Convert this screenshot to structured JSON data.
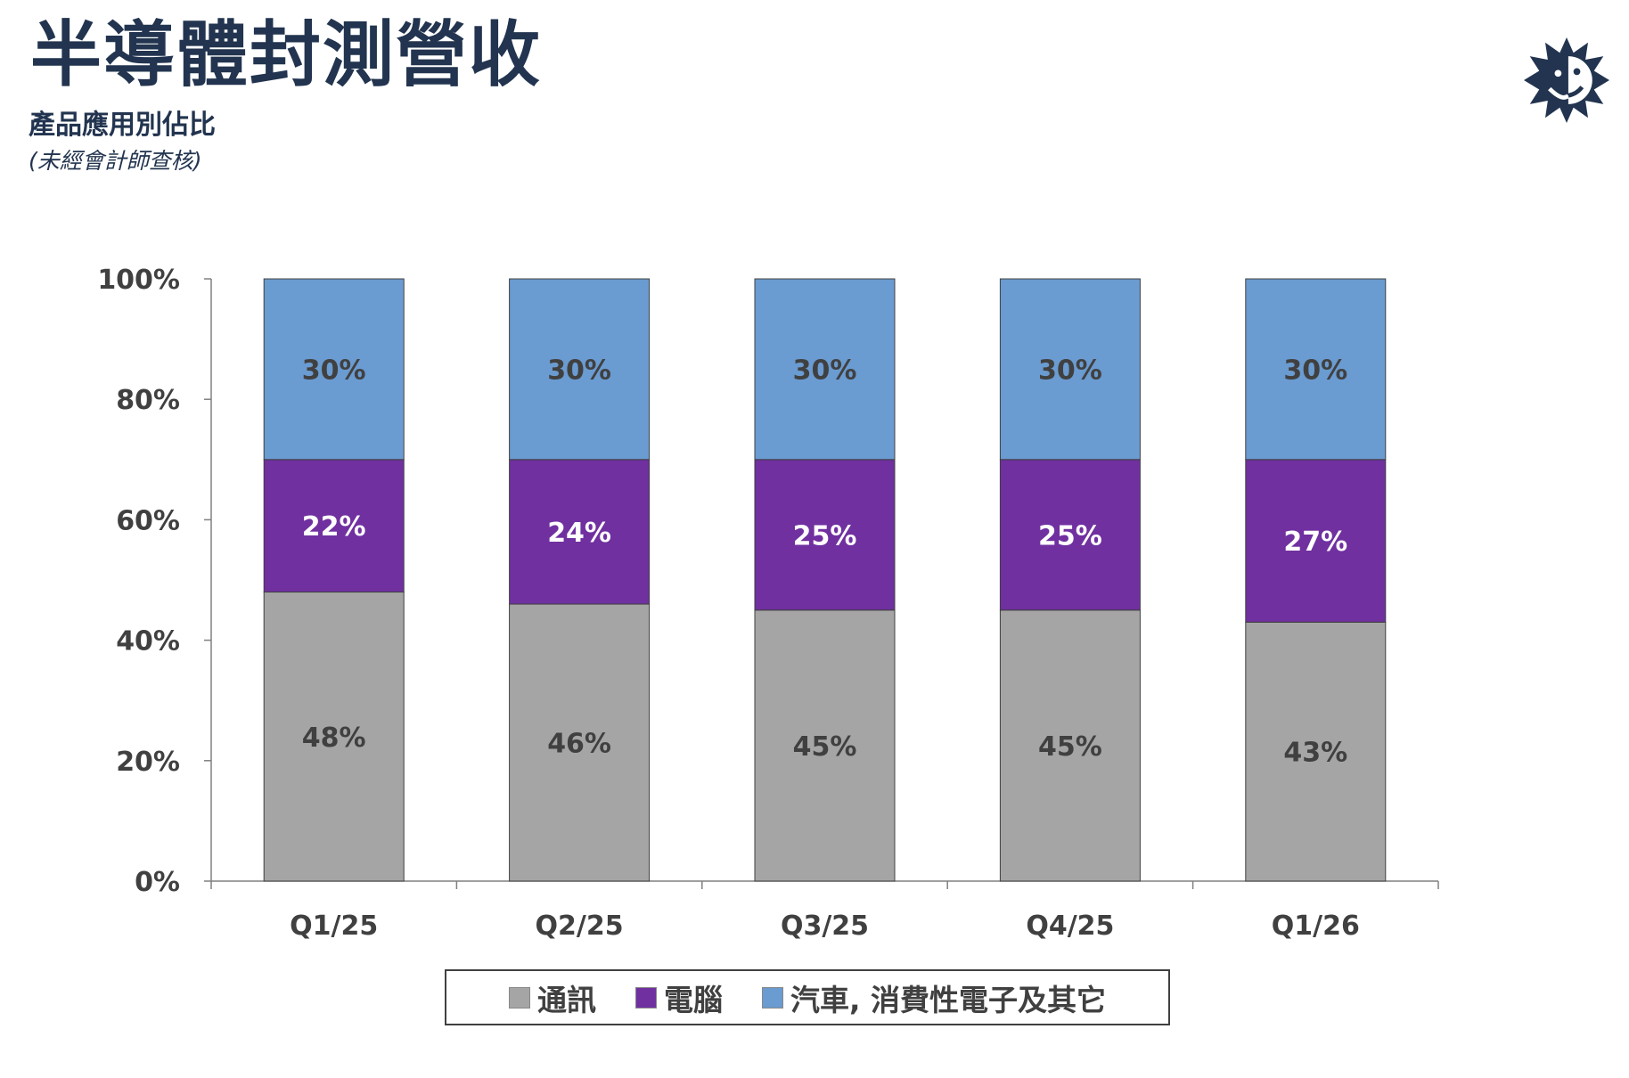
{
  "header": {
    "title": "半導體封測營收",
    "subtitle": "產品應用別佔比",
    "note": "(未經會計師查核)"
  },
  "logo": {
    "icon": "sun-face-logo-icon",
    "color": "#22344f"
  },
  "chart_data": {
    "type": "bar",
    "stacked": true,
    "title": "",
    "xlabel": "",
    "ylabel": "",
    "ylim": [
      0,
      100
    ],
    "yticks": [
      "0%",
      "20%",
      "40%",
      "60%",
      "80%",
      "100%"
    ],
    "categories": [
      "Q1/25",
      "Q2/25",
      "Q3/25",
      "Q4/25",
      "Q1/26"
    ],
    "series": [
      {
        "name": "通訊",
        "color": "#a5a5a5",
        "label_color": "#404040",
        "values": [
          48,
          46,
          45,
          45,
          43
        ]
      },
      {
        "name": "電腦",
        "color": "#7030a0",
        "label_color": "#ffffff",
        "values": [
          22,
          24,
          25,
          25,
          27
        ]
      },
      {
        "name": "汽車, 消費性電子及其它",
        "color": "#6a9bd1",
        "label_color": "#404040",
        "values": [
          30,
          30,
          30,
          30,
          30
        ]
      }
    ],
    "legend_position": "bottom",
    "grid": false
  }
}
